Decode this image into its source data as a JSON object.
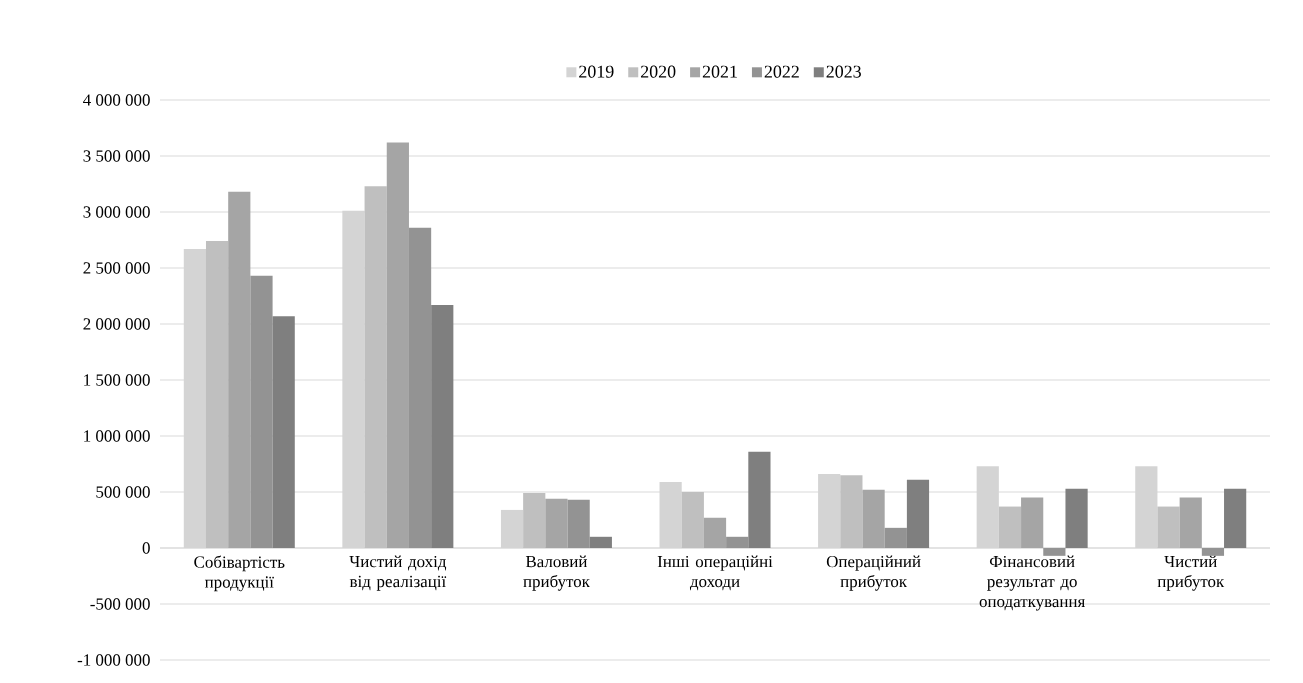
{
  "chart_data": {
    "type": "bar",
    "categories": [
      "Собівартість продукції",
      "Чистий дохід від реалізації",
      "Валовий прибуток",
      "Інші операційні доходи",
      "Операційний прибуток",
      "Фінансовий результат до оподаткування",
      "Чистий прибуток"
    ],
    "series": [
      {
        "name": "2019",
        "color": "#d4d4d4",
        "values": [
          2670000,
          3010000,
          340000,
          590000,
          660000,
          730000,
          730000
        ]
      },
      {
        "name": "2020",
        "color": "#bfbfbf",
        "values": [
          2740000,
          3230000,
          490000,
          500000,
          650000,
          370000,
          370000
        ]
      },
      {
        "name": "2021",
        "color": "#a5a5a5",
        "values": [
          3180000,
          3620000,
          440000,
          270000,
          520000,
          450000,
          450000
        ]
      },
      {
        "name": "2022",
        "color": "#939393",
        "values": [
          2430000,
          2860000,
          430000,
          100000,
          180000,
          -70000,
          -70000
        ]
      },
      {
        "name": "2023",
        "color": "#7f7f7f",
        "values": [
          2070000,
          2170000,
          100000,
          860000,
          610000,
          530000,
          530000
        ]
      }
    ],
    "ylim": [
      -1000000,
      4000000
    ],
    "yticks": [
      {
        "value": -1000000,
        "label": "-1 000 000"
      },
      {
        "value": -500000,
        "label": "-500 000"
      },
      0,
      {
        "value": 500000,
        "label": "500 000"
      },
      {
        "value": 1000000,
        "label": "1 000 000"
      },
      {
        "value": 1500000,
        "label": "1 500 000"
      },
      {
        "value": 2000000,
        "label": "2 000 000"
      },
      {
        "value": 2500000,
        "label": "2 500 000"
      },
      {
        "value": 3000000,
        "label": "3 000 000"
      },
      {
        "value": 3500000,
        "label": "3 500 000"
      },
      {
        "value": 4000000,
        "label": "4 000 000"
      }
    ],
    "grid": "y",
    "legend": "top"
  }
}
